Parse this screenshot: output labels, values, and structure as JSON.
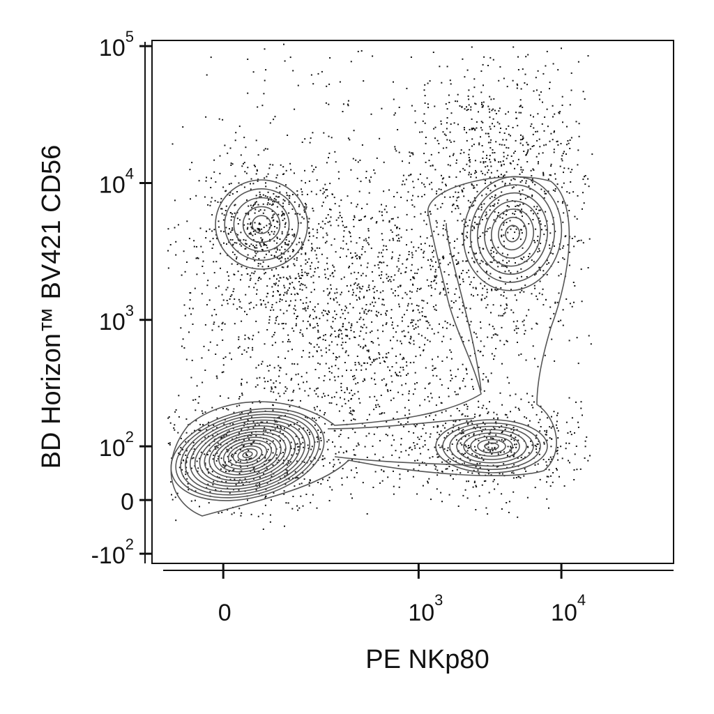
{
  "chart_data": {
    "type": "contour",
    "x_label": "PE  NKp80",
    "y_label": "BD Horizon™ BV421 CD56",
    "scale": "biexponential",
    "xlim": [
      -122,
      61000
    ],
    "ylim": [
      -124,
      110000
    ],
    "xticks": [
      0,
      {
        "value": 1000,
        "label": "10",
        "superscript": "3"
      },
      {
        "value": 10000,
        "label": "10",
        "superscript": "4"
      }
    ],
    "yticks": [
      {
        "value": 100000,
        "label": "10",
        "superscript": "5"
      },
      {
        "value": 10000,
        "label": "10",
        "superscript": "4"
      },
      {
        "value": 1000,
        "label": "10",
        "superscript": "3"
      },
      {
        "value": 100,
        "label": "10",
        "superscript": "2"
      },
      0,
      {
        "value": -100,
        "label": "-10",
        "superscript": "2"
      }
    ],
    "color": "#555555"
  }
}
